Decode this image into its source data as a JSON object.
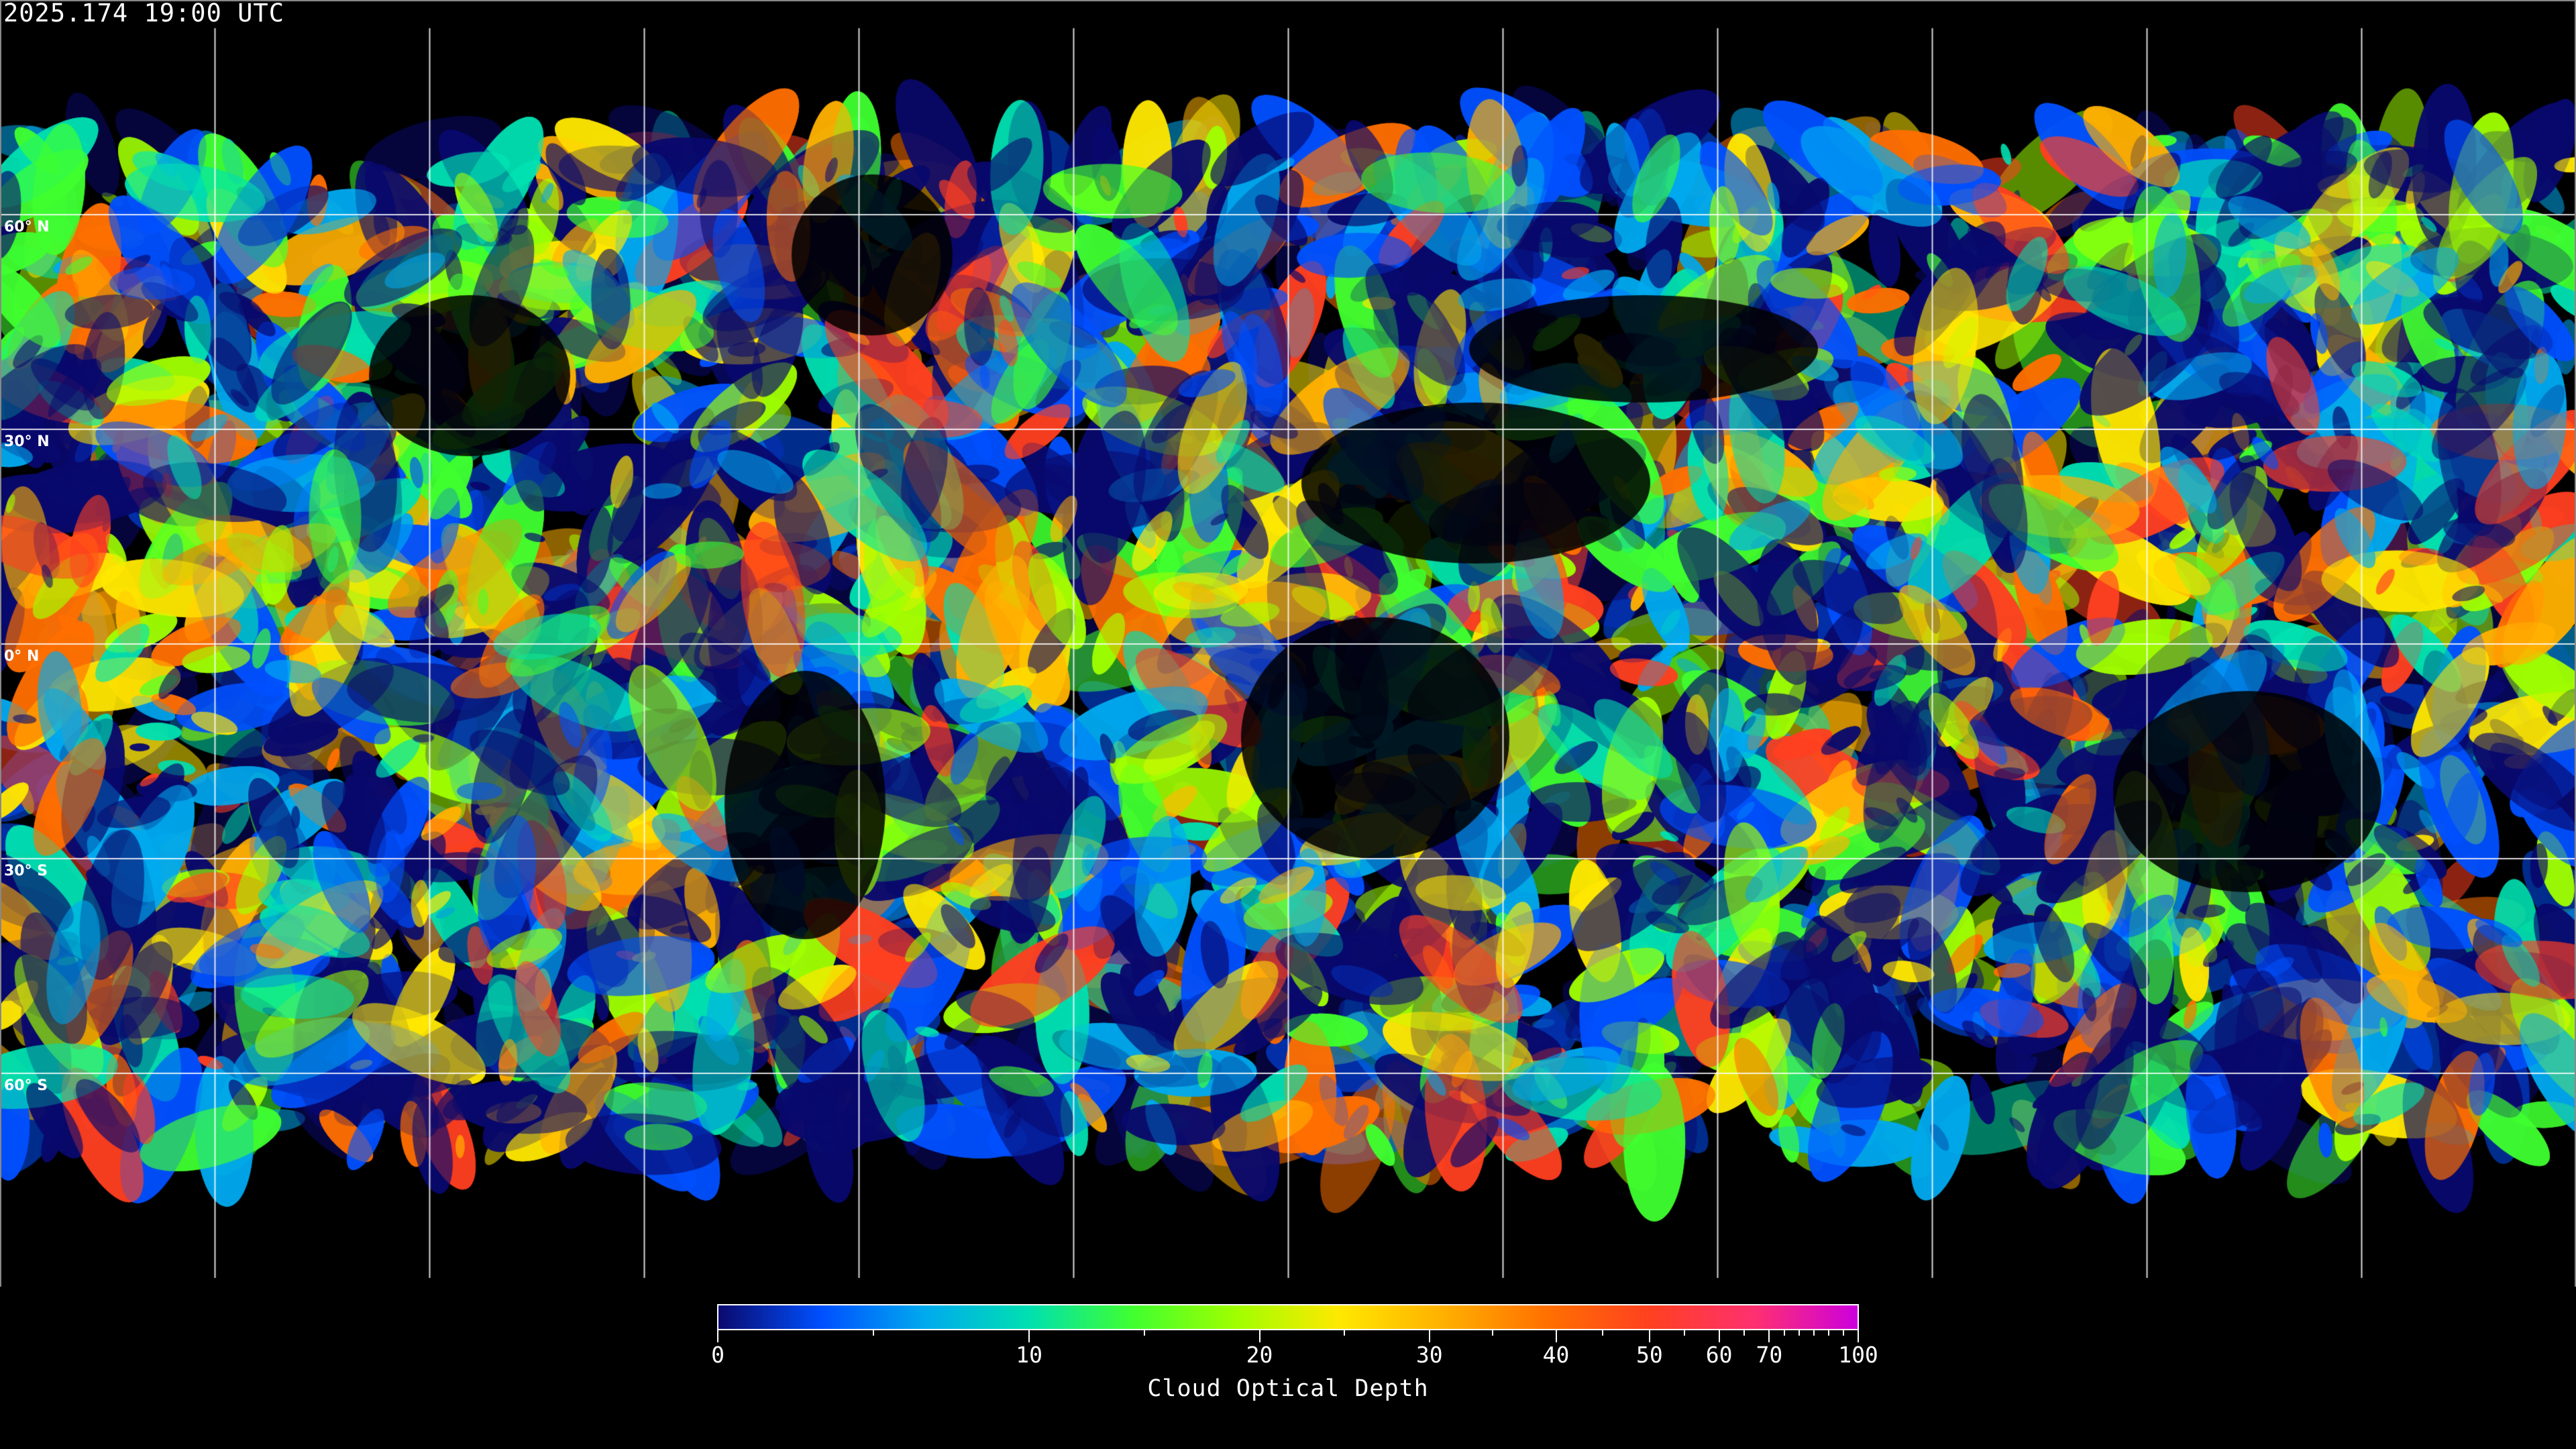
{
  "title": "2025.174 19:00 UTC",
  "map": {
    "projection": "equirectangular",
    "gridlines": "every 30 degrees",
    "lat_labels": [
      "60° N",
      "30° N",
      "0° N",
      "30° S",
      "60° S"
    ],
    "lat_values": [
      60,
      30,
      0,
      -30,
      -60
    ],
    "background": "#000000",
    "coastline_color": "#ffffff"
  },
  "colorbar": {
    "title": "Cloud Optical Depth",
    "tick_labels": [
      "0",
      "10",
      "20",
      "30",
      "40",
      "50",
      "60",
      "70",
      "100"
    ],
    "tick_values": [
      0,
      10,
      20,
      30,
      40,
      50,
      60,
      70,
      100
    ],
    "range": [
      0,
      100
    ],
    "colors": [
      "#0a0a6e",
      "#0050ff",
      "#00aaee",
      "#00e0b0",
      "#40ff30",
      "#a0ff00",
      "#ffe800",
      "#ffb000",
      "#ff7000",
      "#ff4020",
      "#ff3070",
      "#cc00dd"
    ]
  }
}
